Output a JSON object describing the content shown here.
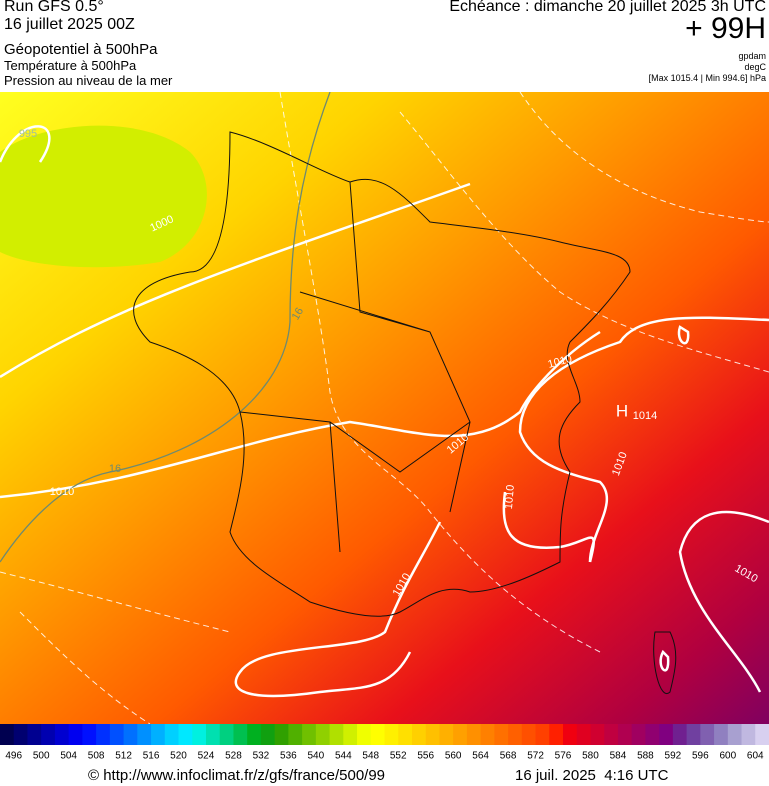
{
  "header": {
    "run": "Run GFS 0.5°",
    "run_date": "16 juillet 2025 00Z",
    "fields": [
      "Géopotentiel à 500hPa",
      "Température à 500hPa",
      "Pression au niveau de la mer"
    ],
    "forecast": "Echéance : dimanche 20 juillet 2025 3h UTC",
    "lead": "+ 99H",
    "units": [
      "gpdam",
      "degC",
      "[Max 1015.4 | Min 994.6] hPa"
    ]
  },
  "map_labels": [
    "995",
    "1000",
    "16",
    "16",
    "1010",
    "1010",
    "H",
    "1014",
    "1010",
    "1010",
    "1010",
    "1010",
    "1010"
  ],
  "legend": {
    "ticks": [
      496,
      500,
      504,
      508,
      512,
      516,
      520,
      524,
      528,
      532,
      536,
      540,
      544,
      548,
      552,
      556,
      560,
      564,
      568,
      572,
      576,
      580,
      584,
      588,
      592,
      596,
      600,
      604
    ],
    "colors": [
      "#000050",
      "#000070",
      "#000090",
      "#0000b0",
      "#0000d0",
      "#0000f0",
      "#0010ff",
      "#0030ff",
      "#0050ff",
      "#0070ff",
      "#0090ff",
      "#00b0ff",
      "#00d0ff",
      "#00e8ff",
      "#00f0e0",
      "#00e0b0",
      "#00d080",
      "#00c050",
      "#00b020",
      "#10a010",
      "#30a000",
      "#50b000",
      "#70c000",
      "#90d000",
      "#b0e000",
      "#d0f000",
      "#f0ff00",
      "#ffff00",
      "#fff000",
      "#ffe000",
      "#ffd000",
      "#ffc000",
      "#ffb000",
      "#ffa000",
      "#ff9000",
      "#ff8000",
      "#ff7000",
      "#ff6000",
      "#ff5000",
      "#ff4000",
      "#ff2000",
      "#f00010",
      "#e00020",
      "#d00030",
      "#c00040",
      "#b00050",
      "#a00060",
      "#900070",
      "#800080",
      "#702090",
      "#7040a0",
      "#8060b0",
      "#9080c0",
      "#a8a0d0",
      "#c0b8e0",
      "#d8d0f0"
    ]
  },
  "footer": {
    "source": "© http://www.infoclimat.fr/z/gfs/france/500/99",
    "timestamp": "16 juil. 2025  4:16 UTC"
  }
}
